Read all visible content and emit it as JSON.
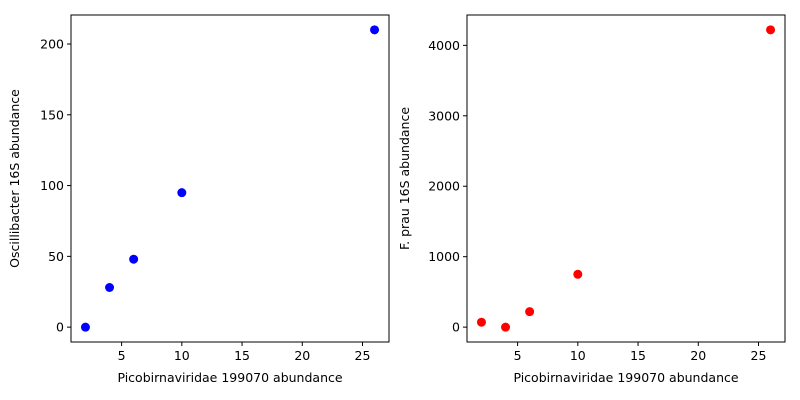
{
  "chart_data": [
    {
      "type": "scatter",
      "title": "",
      "xlabel": "Picobirnaviridae 199070 abundance",
      "ylabel": "Oscillibacter 16S abundance",
      "xlim": [
        0.8,
        27.2
      ],
      "ylim": [
        -10.5,
        220.5
      ],
      "xticks": [
        5,
        10,
        15,
        20,
        25
      ],
      "yticks": [
        0,
        50,
        100,
        150,
        200
      ],
      "grid": false,
      "legend": "none",
      "color": "#0000ff",
      "series": [
        {
          "x": [
            2,
            4,
            6,
            10,
            26
          ],
          "y": [
            0,
            28,
            48,
            95,
            210
          ]
        }
      ]
    },
    {
      "type": "scatter",
      "title": "",
      "xlabel": "Picobirnaviridae 199070 abundance",
      "ylabel": "F. prau 16S abundance",
      "xlim": [
        0.8,
        27.2
      ],
      "ylim": [
        -211,
        4431
      ],
      "xticks": [
        5,
        10,
        15,
        20,
        25
      ],
      "yticks": [
        0,
        1000,
        2000,
        3000,
        4000
      ],
      "grid": false,
      "legend": "none",
      "color": "#ff0000",
      "series": [
        {
          "x": [
            2,
            4,
            6,
            10,
            26
          ],
          "y": [
            70,
            0,
            220,
            750,
            4220
          ]
        }
      ]
    }
  ]
}
